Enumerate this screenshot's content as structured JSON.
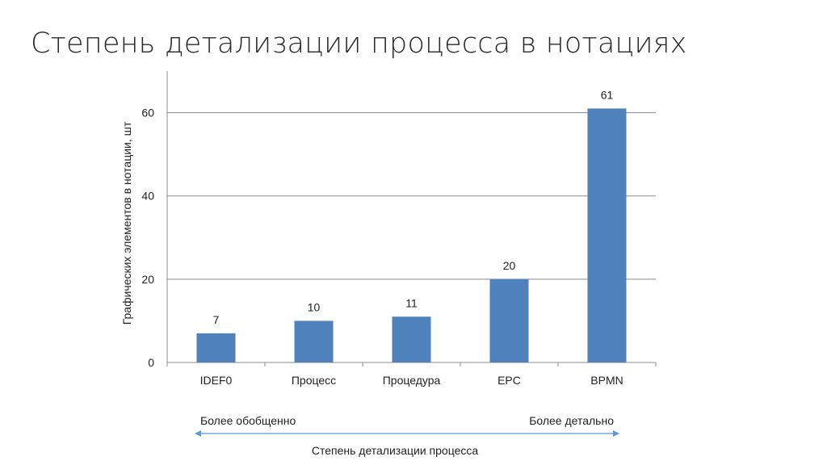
{
  "slide": {
    "title": "Степень детализации процесса в нотациях"
  },
  "chart_data": {
    "type": "bar",
    "title": "",
    "xlabel": "",
    "ylabel": "Графических элементов в нотации, шт",
    "categories": [
      "IDEF0",
      "Процесс",
      "Процедура",
      "EPC",
      "BPMN"
    ],
    "values": [
      7,
      10,
      11,
      20,
      61
    ],
    "data_labels": [
      "7",
      "10",
      "11",
      "20",
      "61"
    ],
    "ylim": [
      0,
      70
    ],
    "yticks": [
      0,
      20,
      40,
      60
    ],
    "grid": true,
    "legend": "none",
    "bar_color": "#4F81BD"
  },
  "annotations": {
    "left_note": "Более обобщенно",
    "right_note": "Более детально",
    "arrow_caption": "Степень детализации процесса",
    "arrow_color": "#5B9BD5"
  }
}
